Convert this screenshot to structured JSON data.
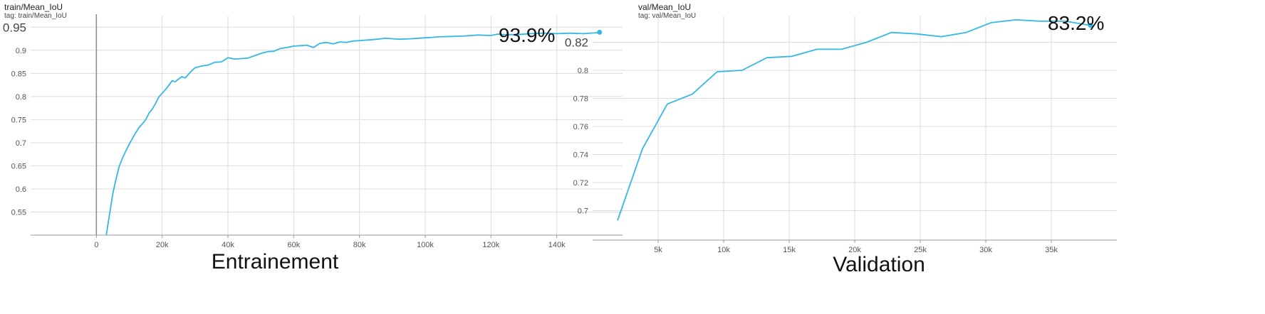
{
  "panels": [
    {
      "title": "train/Mean_IoU",
      "tag": "tag: train/Mean_IoU",
      "value_label": "93.9%",
      "caption": "Entrainement"
    },
    {
      "title": "val/Mean_IoU",
      "tag": "tag: val/Mean_IoU",
      "value_label": "83.2%",
      "caption": "Validation"
    }
  ],
  "colors": {
    "line": "#33b8e6",
    "grid": "#dcdcdc",
    "axis": "#9a9a9a"
  },
  "chart_data": [
    {
      "type": "line",
      "title": "train/Mean_IoU",
      "xlabel": "Entrainement",
      "ylabel": "",
      "xlim": [
        -20000,
        160000
      ],
      "ylim": [
        0.5,
        0.975
      ],
      "xticks": [
        0,
        20000,
        40000,
        60000,
        80000,
        100000,
        120000,
        140000
      ],
      "xtick_labels": [
        "0",
        "20k",
        "40k",
        "60k",
        "80k",
        "100k",
        "120k",
        "140k"
      ],
      "yticks": [
        0.55,
        0.6,
        0.65,
        0.7,
        0.75,
        0.8,
        0.85,
        0.9,
        0.95
      ],
      "ytick_labels": [
        "0.55",
        "0.6",
        "0.65",
        "0.7",
        "0.75",
        "0.8",
        "0.85",
        "0.9",
        "0.95"
      ],
      "grid": true,
      "series": [
        {
          "x": [
            3000,
            4000,
            5000,
            6000,
            7000,
            8000,
            9000,
            10000,
            11000,
            12000,
            13000,
            14000,
            15000,
            16000,
            17000,
            18000,
            19000,
            20000,
            21000,
            22000,
            23000,
            24000,
            25000,
            26000,
            27000,
            28000,
            29000,
            30000,
            32000,
            34000,
            36000,
            38000,
            40000,
            42000,
            44000,
            46000,
            48000,
            50000,
            52000,
            54000,
            56000,
            58000,
            60000,
            62000,
            64000,
            66000,
            68000,
            70000,
            72000,
            74000,
            76000,
            78000,
            80000,
            84000,
            88000,
            92000,
            96000,
            100000,
            102000,
            104000,
            108000,
            112000,
            116000,
            120000,
            122000,
            124000,
            128000,
            132000,
            136000,
            140000,
            144000,
            148000,
            152000,
            153000
          ],
          "values": [
            0.5,
            0.545,
            0.59,
            0.622,
            0.65,
            0.668,
            0.683,
            0.697,
            0.71,
            0.722,
            0.733,
            0.741,
            0.75,
            0.764,
            0.773,
            0.785,
            0.799,
            0.807,
            0.815,
            0.824,
            0.834,
            0.832,
            0.838,
            0.843,
            0.84,
            0.848,
            0.856,
            0.862,
            0.866,
            0.868,
            0.874,
            0.875,
            0.884,
            0.881,
            0.882,
            0.883,
            0.888,
            0.893,
            0.897,
            0.898,
            0.904,
            0.906,
            0.909,
            0.91,
            0.911,
            0.906,
            0.915,
            0.917,
            0.914,
            0.918,
            0.917,
            0.92,
            0.921,
            0.923,
            0.926,
            0.924,
            0.925,
            0.927,
            0.928,
            0.929,
            0.93,
            0.931,
            0.933,
            0.932,
            0.935,
            0.934,
            0.934,
            0.936,
            0.937,
            0.936,
            0.937,
            0.936,
            0.938,
            0.939
          ]
        }
      ]
    },
    {
      "type": "line",
      "title": "val/Mean_IoU",
      "xlabel": "Validation",
      "ylabel": "",
      "xlim": [
        0,
        40000
      ],
      "ylim": [
        0.679,
        0.839
      ],
      "xticks": [
        5000,
        10000,
        15000,
        20000,
        25000,
        30000,
        35000
      ],
      "xtick_labels": [
        "5k",
        "10k",
        "15k",
        "20k",
        "25k",
        "30k",
        "35k"
      ],
      "yticks": [
        0.7,
        0.72,
        0.74,
        0.76,
        0.78,
        0.8,
        0.82
      ],
      "ytick_labels": [
        "0.7",
        "0.72",
        "0.74",
        "0.76",
        "0.78",
        "0.8",
        "0.82"
      ],
      "grid": true,
      "series": [
        {
          "x": [
            1900,
            3800,
            5700,
            7600,
            9500,
            11400,
            13300,
            15200,
            17100,
            19000,
            20900,
            22800,
            24700,
            26600,
            28500,
            30400,
            32300,
            34200,
            36100,
            38000
          ],
          "values": [
            0.693,
            0.744,
            0.776,
            0.783,
            0.799,
            0.8,
            0.809,
            0.81,
            0.815,
            0.815,
            0.82,
            0.827,
            0.826,
            0.824,
            0.827,
            0.834,
            0.836,
            0.835,
            0.835,
            0.832
          ]
        }
      ]
    }
  ]
}
